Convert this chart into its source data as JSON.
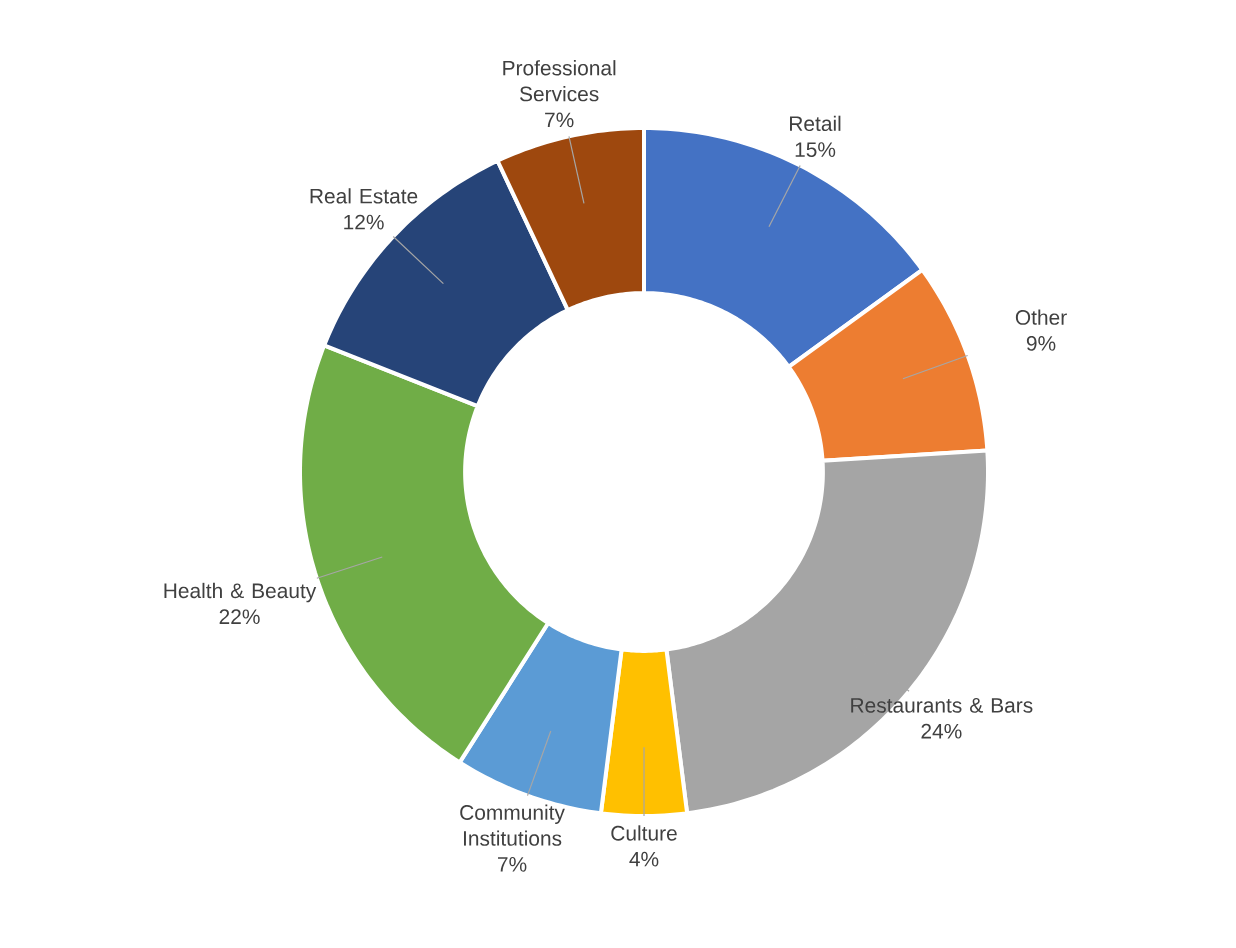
{
  "chart_data": {
    "type": "donut",
    "categories": [
      "Retail",
      "Other",
      "Restaurants & Bars",
      "Culture",
      "Community Institutions",
      "Health & Beauty",
      "Real Estate",
      "Professional Services"
    ],
    "values": [
      15,
      9,
      24,
      4,
      7,
      22,
      12,
      7
    ],
    "value_labels": [
      "15%",
      "9%",
      "24%",
      "4%",
      "7%",
      "22%",
      "12%",
      "7%"
    ],
    "colors": [
      "#4472c4",
      "#ed7d31",
      "#a5a5a5",
      "#ffc000",
      "#5b9bd5",
      "#70ad47",
      "#264478",
      "#9e480e"
    ]
  }
}
